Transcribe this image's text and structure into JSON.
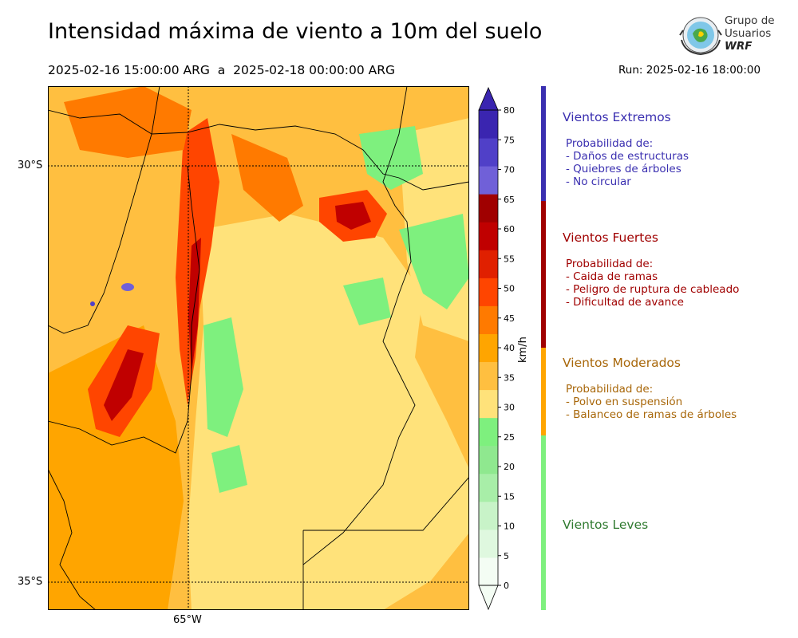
{
  "title": "Intensidad máxima de viento a 10m del suelo",
  "period": "2025-02-16 15:00:00 ARG  a  2025-02-18 00:00:00 ARG",
  "run": "Run: 2025-02-16 18:00:00",
  "logo": {
    "line1": "Grupo de",
    "line2": "Usuarios",
    "line3": "WRF"
  },
  "map": {
    "lat_labels": [
      "30°S",
      "35°S"
    ],
    "lon_labels": [
      "65°W"
    ],
    "colors": {
      "c0": "#f4fdf4",
      "c5": "#dff8df",
      "c10": "#c8f3c8",
      "c15": "#a8eea8",
      "c20": "#8fe88f",
      "c25": "#7ef07e",
      "c30": "#ffe27a",
      "c35": "#ffbf40",
      "c40": "#ffa500",
      "c45": "#ff7a00",
      "c50": "#ff4500",
      "c55": "#e02000",
      "c60": "#c00000",
      "c65": "#a00000",
      "c70": "#7060d8",
      "c75": "#5040c8",
      "c80": "#3a25b0"
    }
  },
  "colorbar": {
    "unit": "km/h",
    "ticks": [
      "0",
      "5",
      "10",
      "15",
      "20",
      "25",
      "30",
      "35",
      "40",
      "45",
      "50",
      "55",
      "60",
      "65",
      "70",
      "75",
      "80"
    ],
    "colors": [
      "#f4fdf4",
      "#dff8df",
      "#c8f3c8",
      "#a8eea8",
      "#8fe88f",
      "#7ef07e",
      "#ffe27a",
      "#ffbf40",
      "#ffa500",
      "#ff7a00",
      "#ff4500",
      "#e02000",
      "#c00000",
      "#a00000",
      "#7060d8",
      "#5040c8",
      "#3a25b0"
    ]
  },
  "categories": [
    {
      "heading": "Vientos Extremos",
      "color": "#3a2fb0",
      "bar_color": "#3a2fb0",
      "body": "Probabilidad de:\n- Daños de estructuras\n- Quiebres de árboles\n- No circular"
    },
    {
      "heading": "Vientos Fuertes",
      "color": "#a00000",
      "bar_color": "#a00000",
      "body": "Probabilidad de:\n- Caida de ramas\n- Peligro de ruptura de cableado\n- Dificultad de avance"
    },
    {
      "heading": "Vientos Moderados",
      "color": "#a8670a",
      "bar_color": "#ffa500",
      "body": "Probabilidad de:\n- Polvo en suspensión\n- Balanceo de ramas de árboles"
    },
    {
      "heading": "Vientos Leves",
      "color": "#2f7a2f",
      "bar_color": "#7ef07e",
      "body": ""
    }
  ]
}
